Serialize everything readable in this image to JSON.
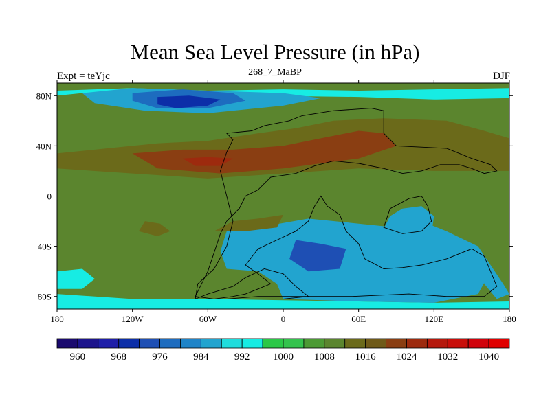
{
  "chart_data": {
    "type": "heatmap",
    "title": "Mean Sea Level Pressure (in hPa)",
    "subtitle": "268_7_MaBP",
    "left_label": "Expt = teYjc",
    "right_label": "DJF",
    "x_axis": {
      "range": [
        -180,
        180
      ],
      "ticks": [
        {
          "value": -180,
          "label": "180"
        },
        {
          "value": -120,
          "label": "120W"
        },
        {
          "value": -60,
          "label": "60W"
        },
        {
          "value": 0,
          "label": "0"
        },
        {
          "value": 60,
          "label": "60E"
        },
        {
          "value": 120,
          "label": "120E"
        },
        {
          "value": 180,
          "label": "180"
        }
      ]
    },
    "y_axis": {
      "range": [
        -90,
        90
      ],
      "ticks": [
        {
          "value": 80,
          "label": "80N"
        },
        {
          "value": 40,
          "label": "40N"
        },
        {
          "value": 0,
          "label": "0"
        },
        {
          "value": -40,
          "label": "40S"
        },
        {
          "value": -80,
          "label": "80S"
        }
      ]
    },
    "colorbar": {
      "colors": [
        "#1a0a6e",
        "#1c148c",
        "#1e1ea8",
        "#0c2ea8",
        "#1e4fb4",
        "#1d6cbf",
        "#1f84c8",
        "#22a4cf",
        "#1fdcdc",
        "#17ece3",
        "#2bc847",
        "#34c34d",
        "#4c9a34",
        "#5b852e",
        "#6b6a1a",
        "#6f5a18",
        "#8a3e12",
        "#9d2a0e",
        "#b5180c",
        "#c80e0a",
        "#d0020b",
        "#e00000"
      ],
      "tick_labels": [
        "960",
        "968",
        "976",
        "984",
        "992",
        "1000",
        "1008",
        "1016",
        "1024",
        "1032",
        "1040"
      ],
      "levels": [
        956,
        960,
        964,
        968,
        972,
        976,
        980,
        984,
        988,
        992,
        996,
        1000,
        1004,
        1008,
        1012,
        1016,
        1020,
        1024,
        1028,
        1032,
        1036,
        1040
      ]
    },
    "background_level_hPa": 1004,
    "pressure_regions": [
      {
        "name": "north-polar-belt",
        "hPa": 988,
        "lon_lat": [
          [
            -180,
            84
          ],
          [
            -120,
            86
          ],
          [
            -60,
            84
          ],
          [
            0,
            85
          ],
          [
            60,
            84
          ],
          [
            120,
            85
          ],
          [
            180,
            86
          ],
          [
            180,
            78
          ],
          [
            120,
            77
          ],
          [
            60,
            79
          ],
          [
            -20,
            80
          ],
          [
            -90,
            79
          ],
          [
            -160,
            82
          ],
          [
            -180,
            80
          ]
        ]
      },
      {
        "name": "north-low-outer",
        "hPa": 980,
        "lon_lat": [
          [
            -160,
            82
          ],
          [
            -120,
            86
          ],
          [
            -60,
            84
          ],
          [
            0,
            82
          ],
          [
            30,
            78
          ],
          [
            0,
            72
          ],
          [
            -60,
            66
          ],
          [
            -110,
            68
          ],
          [
            -150,
            74
          ]
        ]
      },
      {
        "name": "north-low-middle",
        "hPa": 972,
        "lon_lat": [
          [
            -120,
            82
          ],
          [
            -80,
            85
          ],
          [
            -40,
            82
          ],
          [
            -30,
            76
          ],
          [
            -60,
            70
          ],
          [
            -100,
            70
          ],
          [
            -120,
            76
          ]
        ]
      },
      {
        "name": "north-low-core",
        "hPa": 964,
        "lon_lat": [
          [
            -100,
            79
          ],
          [
            -75,
            80
          ],
          [
            -50,
            77
          ],
          [
            -60,
            72
          ],
          [
            -85,
            70
          ],
          [
            -100,
            73
          ]
        ]
      },
      {
        "name": "south-polar-belt",
        "hPa": 988,
        "lon_lat": [
          [
            -180,
            -78
          ],
          [
            -120,
            -82
          ],
          [
            -60,
            -82
          ],
          [
            0,
            -83
          ],
          [
            60,
            -84
          ],
          [
            120,
            -85
          ],
          [
            180,
            -84
          ],
          [
            180,
            -90
          ],
          [
            -180,
            -90
          ]
        ]
      },
      {
        "name": "south-low-large",
        "hPa": 980,
        "lon_lat": [
          [
            -45,
            -28
          ],
          [
            -20,
            -25
          ],
          [
            20,
            -18
          ],
          [
            60,
            -22
          ],
          [
            90,
            -25
          ],
          [
            110,
            -20
          ],
          [
            130,
            -28
          ],
          [
            155,
            -40
          ],
          [
            165,
            -60
          ],
          [
            155,
            -78
          ],
          [
            120,
            -85
          ],
          [
            60,
            -84
          ],
          [
            0,
            -82
          ],
          [
            -5,
            -70
          ],
          [
            -20,
            -60
          ],
          [
            -45,
            -58
          ],
          [
            -50,
            -44
          ]
        ]
      },
      {
        "name": "south-low-core",
        "hPa": 968,
        "lon_lat": [
          [
            10,
            -35
          ],
          [
            30,
            -38
          ],
          [
            50,
            -42
          ],
          [
            45,
            -58
          ],
          [
            20,
            -60
          ],
          [
            5,
            -50
          ]
        ]
      },
      {
        "name": "southeast-pacific-low",
        "hPa": 980,
        "lon_lat": [
          [
            155,
            -40
          ],
          [
            165,
            -55
          ],
          [
            175,
            -70
          ],
          [
            180,
            -78
          ],
          [
            170,
            -82
          ],
          [
            160,
            -70
          ]
        ]
      },
      {
        "name": "west-pacific-low",
        "hPa": 988,
        "lon_lat": [
          [
            -180,
            -60
          ],
          [
            -160,
            -58
          ],
          [
            -150,
            -66
          ],
          [
            -160,
            -74
          ],
          [
            -180,
            -74
          ]
        ]
      },
      {
        "name": "east-asia-low",
        "hPa": 980,
        "lon_lat": [
          [
            95,
            -10
          ],
          [
            110,
            -8
          ],
          [
            120,
            -16
          ],
          [
            118,
            -30
          ],
          [
            100,
            -32
          ],
          [
            80,
            -26
          ],
          [
            85,
            -16
          ]
        ]
      },
      {
        "name": "subtropical-high-north",
        "hPa": 1008,
        "lon_lat": [
          [
            -180,
            34
          ],
          [
            -140,
            38
          ],
          [
            -100,
            42
          ],
          [
            -60,
            44
          ],
          [
            -20,
            50
          ],
          [
            10,
            54
          ],
          [
            40,
            60
          ],
          [
            80,
            62
          ],
          [
            130,
            60
          ],
          [
            160,
            52
          ],
          [
            180,
            46
          ],
          [
            180,
            20
          ],
          [
            120,
            20
          ],
          [
            60,
            22
          ],
          [
            0,
            18
          ],
          [
            -60,
            14
          ],
          [
            -120,
            18
          ],
          [
            -180,
            22
          ]
        ]
      },
      {
        "name": "subtropical-high-core",
        "hPa": 1016,
        "lon_lat": [
          [
            -120,
            34
          ],
          [
            -80,
            37
          ],
          [
            -40,
            37
          ],
          [
            0,
            40
          ],
          [
            30,
            46
          ],
          [
            60,
            52
          ],
          [
            80,
            50
          ],
          [
            90,
            40
          ],
          [
            60,
            30
          ],
          [
            0,
            22
          ],
          [
            -50,
            18
          ],
          [
            -100,
            22
          ]
        ]
      },
      {
        "name": "asian-high-peak",
        "hPa": 1020,
        "lon_lat": [
          [
            -80,
            30
          ],
          [
            -60,
            31
          ],
          [
            -40,
            30
          ],
          [
            -50,
            24
          ],
          [
            -70,
            24
          ]
        ]
      },
      {
        "name": "southern-high",
        "hPa": 1008,
        "lon_lat": [
          [
            -110,
            -20
          ],
          [
            -98,
            -22
          ],
          [
            -90,
            -28
          ],
          [
            -100,
            -32
          ],
          [
            -115,
            -28
          ]
        ]
      },
      {
        "name": "southern-high-east",
        "hPa": 1008,
        "lon_lat": [
          [
            -40,
            -20
          ],
          [
            -20,
            -18
          ],
          [
            0,
            -15
          ],
          [
            -5,
            -25
          ],
          [
            -30,
            -28
          ],
          [
            -55,
            -28
          ]
        ]
      }
    ],
    "continent_outlines": [
      {
        "name": "northern-continent",
        "lon_lat": [
          [
            -45,
            50
          ],
          [
            -25,
            52
          ],
          [
            -15,
            56
          ],
          [
            5,
            60
          ],
          [
            15,
            64
          ],
          [
            40,
            68
          ],
          [
            70,
            70
          ],
          [
            80,
            68
          ],
          [
            80,
            50
          ],
          [
            90,
            40
          ],
          [
            130,
            38
          ],
          [
            150,
            30
          ],
          [
            165,
            25
          ],
          [
            170,
            20
          ],
          [
            160,
            18
          ],
          [
            150,
            22
          ],
          [
            140,
            25
          ],
          [
            125,
            25
          ],
          [
            110,
            20
          ],
          [
            95,
            18
          ],
          [
            80,
            22
          ],
          [
            60,
            26
          ],
          [
            40,
            28
          ],
          [
            25,
            24
          ],
          [
            10,
            18
          ],
          [
            -10,
            15
          ],
          [
            -20,
            5
          ],
          [
            -30,
            0
          ],
          [
            -35,
            -10
          ],
          [
            -45,
            -20
          ],
          [
            -50,
            -30
          ],
          [
            -55,
            -45
          ],
          [
            -60,
            -60
          ],
          [
            -65,
            -70
          ],
          [
            -70,
            -80
          ],
          [
            -55,
            -82
          ],
          [
            -40,
            -80
          ],
          [
            -30,
            -78
          ],
          [
            -20,
            -74
          ],
          [
            -10,
            -70
          ],
          [
            -20,
            -62
          ],
          [
            -30,
            -55
          ],
          [
            -20,
            -42
          ],
          [
            -5,
            -35
          ],
          [
            10,
            -28
          ],
          [
            20,
            -20
          ],
          [
            25,
            -8
          ],
          [
            30,
            0
          ],
          [
            35,
            -8
          ],
          [
            45,
            -15
          ],
          [
            50,
            -28
          ],
          [
            60,
            -38
          ],
          [
            65,
            -50
          ],
          [
            80,
            -58
          ],
          [
            95,
            -57
          ],
          [
            110,
            -55
          ],
          [
            130,
            -50
          ],
          [
            150,
            -42
          ],
          [
            160,
            -48
          ],
          [
            165,
            -60
          ],
          [
            170,
            -72
          ],
          [
            160,
            -80
          ],
          [
            130,
            -80
          ],
          [
            100,
            -78
          ],
          [
            55,
            -80
          ],
          [
            20,
            -80
          ],
          [
            -20,
            -80
          ],
          [
            -45,
            -82
          ],
          [
            -70,
            -82
          ],
          [
            -68,
            -70
          ],
          [
            -55,
            -58
          ],
          [
            -45,
            -40
          ],
          [
            -40,
            -20
          ],
          [
            -45,
            0
          ],
          [
            -50,
            20
          ],
          [
            -45,
            35
          ],
          [
            -40,
            45
          ]
        ]
      },
      {
        "name": "southern-landmass",
        "lon_lat": [
          [
            -70,
            -82
          ],
          [
            -60,
            -78
          ],
          [
            -40,
            -72
          ],
          [
            -30,
            -65
          ],
          [
            -15,
            -58
          ],
          [
            0,
            -62
          ],
          [
            10,
            -72
          ],
          [
            20,
            -80
          ],
          [
            0,
            -82
          ],
          [
            -30,
            -82
          ]
        ]
      },
      {
        "name": "eastern-island",
        "lon_lat": [
          [
            100,
            -2
          ],
          [
            110,
            0
          ],
          [
            115,
            -8
          ],
          [
            118,
            -20
          ],
          [
            110,
            -28
          ],
          [
            95,
            -30
          ],
          [
            80,
            -25
          ],
          [
            85,
            -10
          ]
        ]
      }
    ]
  }
}
